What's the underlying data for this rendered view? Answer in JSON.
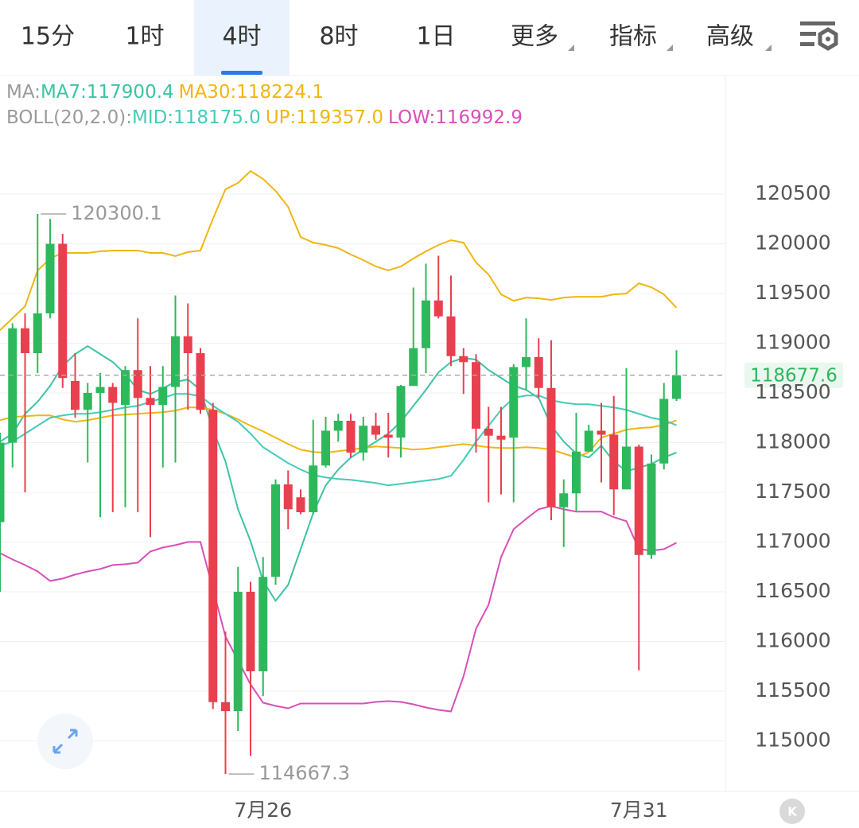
{
  "tabs": [
    "15分",
    "1时",
    "4时",
    "8时",
    "1日",
    "更多",
    "指标",
    "高级"
  ],
  "active_tab": 2,
  "corner_badge": "K",
  "chart_data": {
    "type": "candlestick",
    "indicator_legend": [
      {
        "title": "MA:",
        "items": [
          "MA7:117900.4",
          "MA30:118224.1"
        ]
      },
      {
        "title": "BOLL(20,2.0):",
        "items": [
          "MID:118175.0",
          "UP:119357.0",
          "LOW:116992.9"
        ]
      }
    ],
    "categories": [
      null,
      null,
      null,
      null,
      null,
      null,
      null,
      null,
      null,
      null,
      null,
      null,
      null,
      null,
      null,
      null,
      null,
      null,
      null,
      null,
      null,
      "7月26",
      null,
      null,
      null,
      null,
      null,
      null,
      null,
      null,
      null,
      null,
      null,
      null,
      null,
      null,
      null,
      null,
      null,
      null,
      null,
      null,
      null,
      null,
      null,
      null,
      null,
      null,
      null,
      null,
      null,
      "7月31",
      null,
      null,
      null
    ],
    "open": [
      117200,
      118000,
      119150,
      118900,
      119300,
      120000,
      118620,
      118330,
      118500,
      118560,
      118380,
      118730,
      118450,
      118380,
      118560,
      119070,
      118900,
      118330,
      115390,
      115300,
      116500,
      115700,
      116650,
      117580,
      117450,
      117300,
      117770,
      118120,
      118220,
      117900,
      118170,
      118080,
      118050,
      118570,
      118950,
      119430,
      119270,
      118870,
      118810,
      118140,
      118070,
      118050,
      118760,
      118860,
      118550,
      117350,
      117490,
      117910,
      118120,
      118080,
      117530,
      117960,
      116870,
      117790,
      118440
    ],
    "high": [
      118100,
      119200,
      119300,
      120300.1,
      120250,
      120100,
      118900,
      118600,
      118700,
      118600,
      118770,
      119250,
      118770,
      118770,
      119480,
      119400,
      118950,
      118400,
      116100,
      116750,
      116600,
      116850,
      117630,
      117720,
      117530,
      118230,
      118260,
      118290,
      118290,
      118260,
      118300,
      118300,
      118580,
      119560,
      119800,
      119880,
      119680,
      118950,
      118890,
      118360,
      118360,
      118790,
      119250,
      119050,
      119030,
      117630,
      118300,
      118180,
      118400,
      118470,
      118750,
      117980,
      117880,
      118600,
      118930
    ],
    "low": [
      116500,
      117750,
      117500,
      118700,
      119250,
      118550,
      118250,
      117800,
      117250,
      117300,
      117350,
      117300,
      117050,
      117750,
      117800,
      118330,
      118290,
      115320,
      114667.3,
      115100,
      114850,
      115450,
      116570,
      117130,
      117280,
      117280,
      117750,
      118010,
      117850,
      117820,
      118030,
      117850,
      117850,
      118570,
      118700,
      119250,
      118770,
      118490,
      117900,
      117400,
      117480,
      117400,
      118530,
      118450,
      117220,
      116950,
      117300,
      117910,
      117600,
      117270,
      117530,
      115710,
      116830,
      117730,
      118420
    ],
    "close": [
      118000,
      119150,
      118900,
      119300,
      120000,
      118650,
      118330,
      118500,
      118560,
      118400,
      118730,
      118450,
      118380,
      118560,
      119070,
      118900,
      118330,
      115390,
      115300,
      116500,
      115700,
      116650,
      117580,
      117330,
      117300,
      117770,
      118120,
      118220,
      117900,
      118170,
      118080,
      118050,
      118570,
      118950,
      119430,
      119270,
      118870,
      118810,
      118140,
      118070,
      118030,
      118760,
      118860,
      118550,
      117350,
      117490,
      117910,
      118120,
      118080,
      117530,
      117960,
      116870,
      117790,
      118440,
      118677.6
    ],
    "up_color": "#2eb85c",
    "down_color": "#e8404f",
    "series": [
      {
        "name": "MA7",
        "color": "#3cc3a3",
        "values": [
          118010,
          118090,
          118290,
          118410,
          118571,
          118771,
          118891,
          118971,
          118891,
          118811,
          118691,
          118531,
          118490,
          118547,
          118611,
          118635,
          118531,
          118130,
          117810,
          117330,
          117009,
          116609,
          116409,
          116569,
          116929,
          117290,
          117570,
          117730,
          117850,
          117930,
          118010,
          118090,
          118210,
          118370,
          118531,
          118707,
          118811,
          118851,
          118835,
          118731,
          118651,
          118571,
          118531,
          118450,
          118170,
          118010,
          117890,
          117850,
          117970,
          117810,
          117714,
          117746,
          117786,
          117850,
          117900.4
        ]
      },
      {
        "name": "MA30",
        "color": "#efb614",
        "values": [
          118226,
          118258,
          118266,
          118274,
          118274,
          118234,
          118210,
          118226,
          118250,
          118274,
          118282,
          118290,
          118298,
          118306,
          118322,
          118354,
          118354,
          118330,
          118290,
          118234,
          118170,
          118114,
          118050,
          117986,
          117930,
          117906,
          117898,
          117914,
          117930,
          117946,
          117962,
          117954,
          117946,
          117930,
          117938,
          117954,
          117970,
          117986,
          117970,
          117954,
          117946,
          117946,
          117954,
          117946,
          117930,
          117890,
          117850,
          117906,
          118050,
          118090,
          118130,
          118146,
          118154,
          118178,
          118224.1
        ]
      },
      {
        "name": "MID",
        "color": "#45cbb8",
        "values": [
          117970,
          118010,
          118090,
          118170,
          118250,
          118274,
          118290,
          118290,
          118306,
          118330,
          118354,
          118370,
          118410,
          118450,
          118490,
          118490,
          118466,
          118370,
          118290,
          118210,
          118090,
          117954,
          117874,
          117794,
          117730,
          117674,
          117650,
          117634,
          117626,
          117610,
          117594,
          117570,
          117586,
          117602,
          117618,
          117634,
          117666,
          117826,
          118010,
          118170,
          118330,
          118450,
          118474,
          118474,
          118426,
          118402,
          118386,
          118386,
          118370,
          118354,
          118330,
          118290,
          118250,
          118226,
          118175
        ]
      },
      {
        "name": "UP",
        "color": "#efb614",
        "values": [
          119131,
          119251,
          119371,
          119731,
          119852,
          119908,
          119908,
          119908,
          119924,
          119932,
          119932,
          119932,
          119908,
          119908,
          119876,
          119916,
          119932,
          120252,
          120548,
          120612,
          120732,
          120652,
          120532,
          120372,
          120068,
          120012,
          119988,
          119956,
          119892,
          119836,
          119772,
          119732,
          119772,
          119852,
          119924,
          119988,
          120036,
          120012,
          119812,
          119691,
          119491,
          119427,
          119459,
          119451,
          119435,
          119459,
          119467,
          119467,
          119467,
          119491,
          119499,
          119603,
          119563,
          119491,
          119357
        ]
      },
      {
        "name": "LOW",
        "color": "#d94fb8",
        "values": [
          116889,
          116825,
          116769,
          116705,
          116609,
          116633,
          116673,
          116705,
          116729,
          116769,
          116777,
          116793,
          116905,
          116945,
          116969,
          117001,
          117001,
          116529,
          116049,
          115809,
          115568,
          115384,
          115352,
          115328,
          115376,
          115376,
          115376,
          115376,
          115376,
          115376,
          115392,
          115400,
          115392,
          115368,
          115336,
          115312,
          115296,
          115648,
          116129,
          116369,
          116849,
          117129,
          117233,
          117330,
          117362,
          117330,
          117306,
          117306,
          117306,
          117250,
          117210,
          116929,
          116913,
          116929,
          116992.9
        ]
      }
    ],
    "last_price": 118677.6,
    "ylim": [
      114500,
      121700
    ],
    "yticks": [
      115000,
      115500,
      116000,
      116500,
      117000,
      117500,
      118000,
      118500,
      119000,
      119500,
      120000,
      120500
    ],
    "grid": true
  }
}
